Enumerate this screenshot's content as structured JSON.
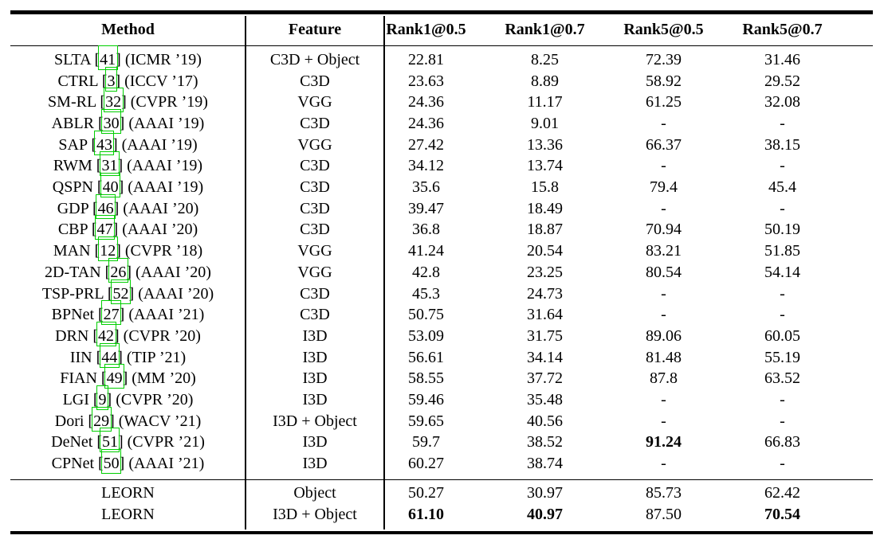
{
  "page": {
    "background": "#ffffff"
  },
  "table": {
    "citation_box_color": "#00cf00",
    "na_symbol": "-",
    "columns": [
      "Method",
      "Feature",
      "Rank1@0.5",
      "Rank1@0.7",
      "Rank5@0.5",
      "Rank5@0.7"
    ],
    "rows": [
      {
        "name": "SLTA",
        "cite": "41",
        "venue": "(ICMR ’19)",
        "feature": "C3D + Object",
        "values": [
          "22.81",
          "8.25",
          "72.39",
          "31.46"
        ],
        "bold": []
      },
      {
        "name": "CTRL",
        "cite": "3",
        "venue": "(ICCV ’17)",
        "feature": "C3D",
        "values": [
          "23.63",
          "8.89",
          "58.92",
          "29.52"
        ],
        "bold": []
      },
      {
        "name": "SM-RL",
        "cite": "32",
        "venue": "(CVPR ’19)",
        "feature": "VGG",
        "values": [
          "24.36",
          "11.17",
          "61.25",
          "32.08"
        ],
        "bold": []
      },
      {
        "name": "ABLR",
        "cite": "30",
        "venue": "(AAAI ’19)",
        "feature": "C3D",
        "values": [
          "24.36",
          "9.01",
          "-",
          "-"
        ],
        "bold": []
      },
      {
        "name": "SAP",
        "cite": "43",
        "venue": "(AAAI ’19)",
        "feature": "VGG",
        "values": [
          "27.42",
          "13.36",
          "66.37",
          "38.15"
        ],
        "bold": []
      },
      {
        "name": "RWM",
        "cite": "31",
        "venue": "(AAAI ’19)",
        "feature": "C3D",
        "values": [
          "34.12",
          "13.74",
          "-",
          "-"
        ],
        "bold": []
      },
      {
        "name": "QSPN",
        "cite": "40",
        "venue": "(AAAI ’19)",
        "feature": "C3D",
        "values": [
          "35.6",
          "15.8",
          "79.4",
          "45.4"
        ],
        "bold": []
      },
      {
        "name": "GDP",
        "cite": "46",
        "venue": "(AAAI ’20)",
        "feature": "C3D",
        "values": [
          "39.47",
          "18.49",
          "-",
          "-"
        ],
        "bold": []
      },
      {
        "name": "CBP",
        "cite": "47",
        "venue": "(AAAI ’20)",
        "feature": "C3D",
        "values": [
          "36.8",
          "18.87",
          "70.94",
          "50.19"
        ],
        "bold": []
      },
      {
        "name": "MAN",
        "cite": "12",
        "venue": "(CVPR ’18)",
        "feature": "VGG",
        "values": [
          "41.24",
          "20.54",
          "83.21",
          "51.85"
        ],
        "bold": []
      },
      {
        "name": "2D-TAN",
        "cite": "26",
        "venue": "(AAAI ’20)",
        "feature": "VGG",
        "values": [
          "42.8",
          "23.25",
          "80.54",
          "54.14"
        ],
        "bold": []
      },
      {
        "name": "TSP-PRL",
        "cite": "52",
        "venue": "(AAAI ’20)",
        "feature": "C3D",
        "values": [
          "45.3",
          "24.73",
          "-",
          "-"
        ],
        "bold": []
      },
      {
        "name": "BPNet",
        "cite": "27",
        "venue": "(AAAI ’21)",
        "feature": "C3D",
        "values": [
          "50.75",
          "31.64",
          "-",
          "-"
        ],
        "bold": []
      },
      {
        "name": "DRN",
        "cite": "42",
        "venue": "(CVPR ’20)",
        "feature": "I3D",
        "values": [
          "53.09",
          "31.75",
          "89.06",
          "60.05"
        ],
        "bold": []
      },
      {
        "name": "IIN",
        "cite": "44",
        "venue": "(TIP ’21)",
        "feature": "I3D",
        "values": [
          "56.61",
          "34.14",
          "81.48",
          "55.19"
        ],
        "bold": []
      },
      {
        "name": "FIAN",
        "cite": "49",
        "venue": "(MM ’20)",
        "feature": "I3D",
        "values": [
          "58.55",
          "37.72",
          "87.8",
          "63.52"
        ],
        "bold": []
      },
      {
        "name": "LGI",
        "cite": "9",
        "venue": "(CVPR ’20)",
        "feature": "I3D",
        "values": [
          "59.46",
          "35.48",
          "-",
          "-"
        ],
        "bold": []
      },
      {
        "name": "Dori",
        "cite": "29",
        "venue": "(WACV ’21)",
        "feature": "I3D + Object",
        "values": [
          "59.65",
          "40.56",
          "-",
          "-"
        ],
        "bold": []
      },
      {
        "name": "DeNet",
        "cite": "51",
        "venue": "(CVPR ’21)",
        "feature": "I3D",
        "values": [
          "59.7",
          "38.52",
          "91.24",
          "66.83"
        ],
        "bold": [
          2
        ]
      },
      {
        "name": "CPNet",
        "cite": "50",
        "venue": "(AAAI ’21)",
        "feature": "I3D",
        "values": [
          "60.27",
          "38.74",
          "-",
          "-"
        ],
        "bold": []
      }
    ],
    "footer_rows": [
      {
        "name": "LEORN",
        "feature": "Object",
        "values": [
          "50.27",
          "30.97",
          "85.73",
          "62.42"
        ],
        "bold": []
      },
      {
        "name": "LEORN",
        "feature": "I3D + Object",
        "values": [
          "61.10",
          "40.97",
          "87.50",
          "70.54"
        ],
        "bold": [
          0,
          1,
          3
        ]
      }
    ]
  }
}
